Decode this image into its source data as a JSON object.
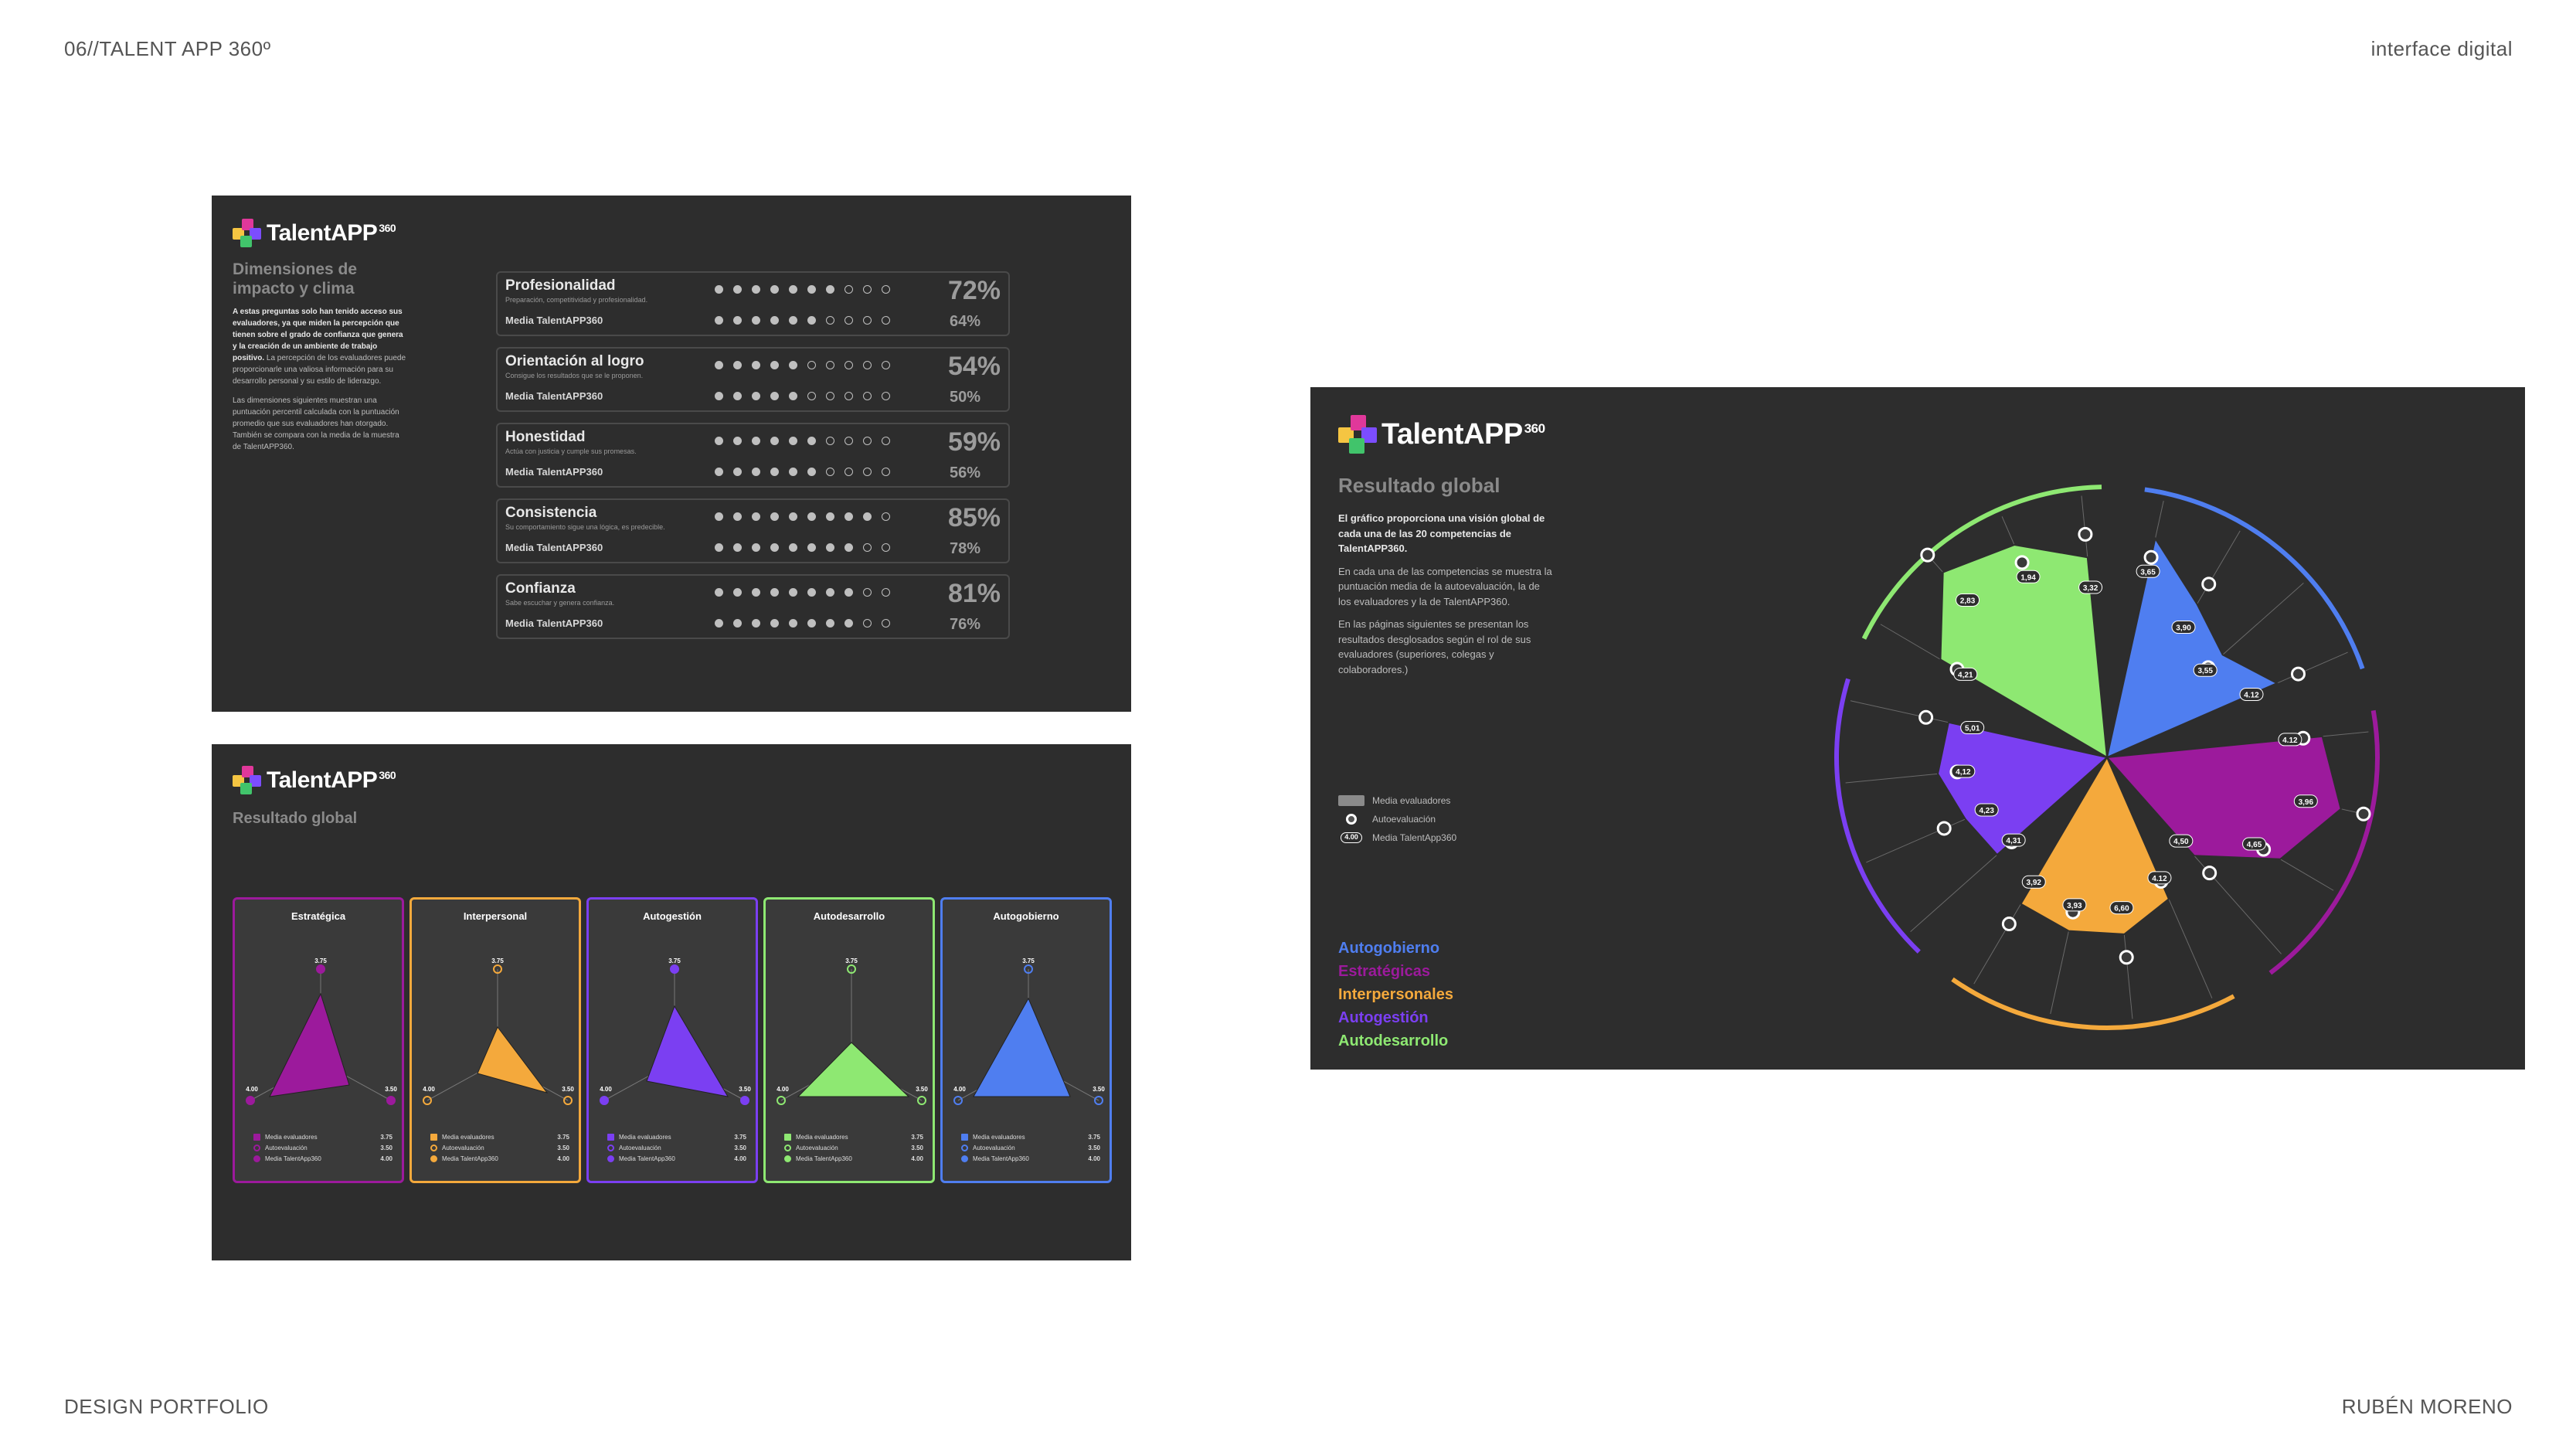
{
  "page": {
    "top_left": "06//TALENT APP 360º",
    "top_right": "interface digital",
    "bottom_left": "DESIGN PORTFOLIO",
    "bottom_right": "RUBÉN MORENO"
  },
  "brand": {
    "name": "TalentAPP",
    "superscript": "360",
    "mark_colors": [
      "#f5c542",
      "#e0389a",
      "#7c4dff",
      "#41c46b"
    ]
  },
  "dimensions_screen": {
    "title_line1": "Dimensiones de",
    "title_line2": "impacto y clima",
    "intro_bold": "A estas preguntas solo han tenido acceso sus evaluadores, ya que miden la percepción que tienen sobre el grado de confianza que genera y la creación de un ambiente de trabajo positivo.",
    "intro_p1": "La percepción de los evaluadores puede proporcionarle una valiosa información para su desarrollo personal y su estilo de liderazgo.",
    "intro_p2": "Las dimensiones siguientes muestran una puntuación percentil calculada con la puntuación promedio que sus evaluadores han otorgado. También se compara con la media de la muestra de TalentAPP360.",
    "avg_label": "Media TalentAPP360",
    "rows": [
      {
        "name": "Profesionalidad",
        "desc": "Preparación, competitividad y profesionalidad.",
        "score": "72%",
        "avg": "64%",
        "score_fill": 0.72,
        "avg_fill": 0.64
      },
      {
        "name": "Orientación al logro",
        "desc": "Consigue los resultados que se le proponen.",
        "score": "54%",
        "avg": "50%",
        "score_fill": 0.54,
        "avg_fill": 0.5
      },
      {
        "name": "Honestidad",
        "desc": "Actúa con justicia y cumple sus promesas.",
        "score": "59%",
        "avg": "56%",
        "score_fill": 0.59,
        "avg_fill": 0.56
      },
      {
        "name": "Consistencia",
        "desc": "Su comportamiento sigue una lógica, es predecible.",
        "score": "85%",
        "avg": "78%",
        "score_fill": 0.85,
        "avg_fill": 0.78
      },
      {
        "name": "Confianza",
        "desc": "Sabe escuchar y genera confianza.",
        "score": "81%",
        "avg": "76%",
        "score_fill": 0.81,
        "avg_fill": 0.76
      }
    ]
  },
  "cards_screen": {
    "title": "Resultado global",
    "legend": {
      "media_evaluadores": "Media evaluadores",
      "autoevaluacion": "Autoevaluación",
      "media_app": "Media TalentApp360"
    },
    "cards": [
      {
        "title": "Estratégica",
        "color": "#9c1a9c",
        "top": "3.75",
        "left": "4.00",
        "right": "3.50",
        "v1": "3.75",
        "v2": "3.50",
        "v3": "4.00"
      },
      {
        "title": "Interpersonal",
        "color": "#f4a93c",
        "top": "3.75",
        "left": "4.00",
        "right": "3.50",
        "v1": "3.75",
        "v2": "3.50",
        "v3": "4.00"
      },
      {
        "title": "Autogestión",
        "color": "#7b3ff2",
        "top": "3.75",
        "left": "4.00",
        "right": "3.50",
        "v1": "3.75",
        "v2": "3.50",
        "v3": "4.00"
      },
      {
        "title": "Autodesarrollo",
        "color": "#8ee872",
        "top": "3.75",
        "left": "4.00",
        "right": "3.50",
        "v1": "3.75",
        "v2": "3.50",
        "v3": "4.00"
      },
      {
        "title": "Autogobierno",
        "color": "#4f7ef0",
        "top": "3.75",
        "left": "4.00",
        "right": "3.50",
        "v1": "3.75",
        "v2": "3.50",
        "v3": "4.00"
      }
    ]
  },
  "global_screen": {
    "title": "Resultado global",
    "intro_bold": "El gráfico proporciona una visión global de cada una de las 20 competencias de TalentAPP360.",
    "intro_p1": "En cada una de las competencias se muestra la puntuación media de la autoevaluación, la de los evaluadores y la de TalentAPP360.",
    "intro_p2": "En las páginas siguientes se presentan los resultados desglosados según el rol de sus evaluadores (superiores, colegas y colaboradores.)",
    "legend": {
      "media_evaluadores": "Media evaluadores",
      "autoevaluacion": "Autoevaluación",
      "media_app": "Media TalentApp360",
      "badge_value": "4.00"
    },
    "categories": [
      {
        "name": "Autogobierno",
        "color": "#4f7ef0"
      },
      {
        "name": "Estratégicas",
        "color": "#9c1a9c"
      },
      {
        "name": "Interpersonales",
        "color": "#f4a93c"
      },
      {
        "name": "Autogestión",
        "color": "#7b3ff2"
      },
      {
        "name": "Autodesarrollo",
        "color": "#8ee872"
      }
    ],
    "value_labels": [
      "3,65",
      "3,90",
      "3,55",
      "4.12",
      "4.12",
      "3,96",
      "4,65",
      "4,50",
      "4.12",
      "6,60",
      "3,93",
      "3,92",
      "4,31",
      "4,23",
      "4,12",
      "5,01",
      "4,21",
      "2,83",
      "1,94",
      "3,32"
    ]
  }
}
